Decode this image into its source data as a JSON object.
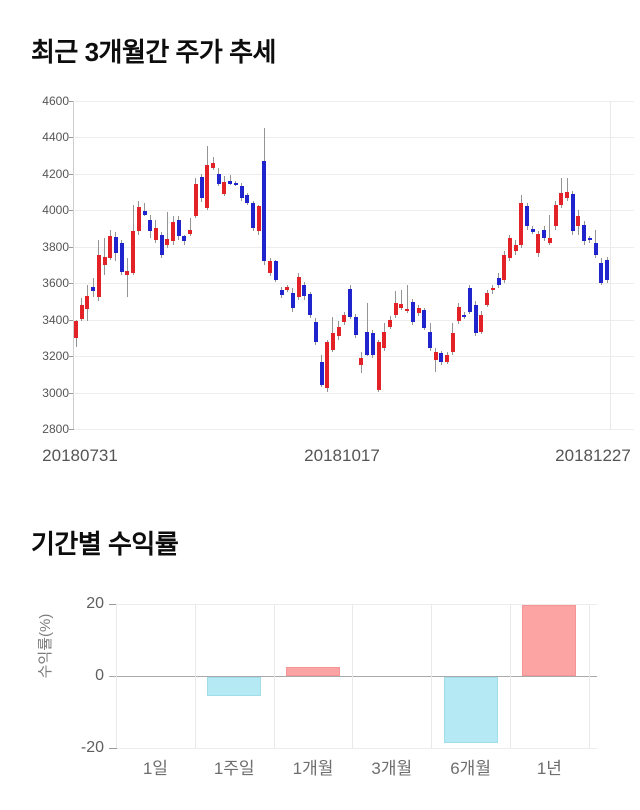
{
  "page_background": "#ffffff",
  "colors": {
    "candle_up": "#e32227",
    "candle_down": "#1f24cd",
    "wick": "#949494",
    "bar_positive_fill": "#fca4a4",
    "bar_positive_border": "#f59495",
    "bar_negative_fill": "#b5e9f3",
    "bar_negative_border": "#a0dcea",
    "gridline": "#ededed",
    "zero_line": "#a9a9a9",
    "title_text": "#0d0d0d",
    "tick_text": "#555555"
  },
  "chart_data": [
    {
      "type": "candlestick",
      "title": "최근 3개월간 주가 추세",
      "ylim": [
        2800,
        4600
      ],
      "y_ticks": [
        4600,
        4400,
        4200,
        4000,
        3800,
        3600,
        3400,
        3200,
        3000,
        2800
      ],
      "x_labels": [
        "20180731",
        "20181017",
        "20181227"
      ],
      "grid": "horizontal",
      "candles_format": [
        "open",
        "high",
        "low",
        "close"
      ],
      "up_color_meaning": "close >= open (red)",
      "down_color_meaning": "close < open (blue)",
      "candles": [
        [
          3300,
          3395,
          3250,
          3390
        ],
        [
          3400,
          3520,
          3390,
          3480
        ],
        [
          3460,
          3590,
          3390,
          3530
        ],
        [
          3580,
          3625,
          3525,
          3555
        ],
        [
          3525,
          3835,
          3500,
          3755
        ],
        [
          3700,
          3845,
          3645,
          3745
        ],
        [
          3735,
          3890,
          3725,
          3855
        ],
        [
          3850,
          3880,
          3720,
          3765
        ],
        [
          3820,
          3835,
          3645,
          3660
        ],
        [
          3645,
          3735,
          3525,
          3665
        ],
        [
          3655,
          4030,
          3645,
          3885
        ],
        [
          3885,
          4050,
          3865,
          4015
        ],
        [
          3995,
          4040,
          3965,
          3975
        ],
        [
          3945,
          3975,
          3845,
          3885
        ],
        [
          3835,
          3945,
          3820,
          3900
        ],
        [
          3865,
          3880,
          3735,
          3755
        ],
        [
          3810,
          3990,
          3790,
          3840
        ],
        [
          3830,
          3965,
          3810,
          3935
        ],
        [
          3945,
          3965,
          3835,
          3855
        ],
        [
          3855,
          3865,
          3810,
          3830
        ],
        [
          3870,
          3955,
          3855,
          3890
        ],
        [
          3965,
          4175,
          3955,
          4140
        ],
        [
          4180,
          4200,
          4045,
          4065
        ],
        [
          4010,
          4350,
          4000,
          4245
        ],
        [
          4230,
          4290,
          4220,
          4255
        ],
        [
          4200,
          4230,
          4130,
          4140
        ],
        [
          4085,
          4185,
          4075,
          4155
        ],
        [
          4160,
          4190,
          4135,
          4145
        ],
        [
          4150,
          4160,
          4130,
          4140
        ],
        [
          4130,
          4148,
          4047,
          4065
        ],
        [
          4080,
          4093,
          4029,
          4040
        ],
        [
          4040,
          4047,
          3883,
          3900
        ],
        [
          3883,
          4029,
          3864,
          4020
        ],
        [
          4270,
          4450,
          3700,
          3720
        ],
        [
          3655,
          3736,
          3636,
          3720
        ],
        [
          3718,
          3727,
          3608,
          3617
        ],
        [
          3562,
          3580,
          3517,
          3535
        ],
        [
          3562,
          3590,
          3550,
          3580
        ],
        [
          3544,
          3571,
          3443,
          3462
        ],
        [
          3526,
          3654,
          3508,
          3635
        ],
        [
          3590,
          3608,
          3508,
          3526
        ],
        [
          3539,
          3553,
          3407,
          3425
        ],
        [
          3389,
          3407,
          3260,
          3279
        ],
        [
          3169,
          3206,
          3032,
          3041
        ],
        [
          3023,
          3288,
          3005,
          3279
        ],
        [
          3233,
          3416,
          3224,
          3325
        ],
        [
          3310,
          3390,
          3290,
          3360
        ],
        [
          3389,
          3440,
          3370,
          3425
        ],
        [
          3568,
          3590,
          3400,
          3411
        ],
        [
          3411,
          3430,
          3300,
          3315
        ],
        [
          3151,
          3224,
          3105,
          3188
        ],
        [
          3334,
          3490,
          3200,
          3206
        ],
        [
          3325,
          3340,
          3190,
          3206
        ],
        [
          3014,
          3290,
          3005,
          3279
        ],
        [
          3242,
          3380,
          3230,
          3334
        ],
        [
          3361,
          3420,
          3350,
          3398
        ],
        [
          3425,
          3558,
          3407,
          3490
        ],
        [
          3462,
          3560,
          3450,
          3484
        ],
        [
          3445,
          3590,
          3435,
          3455
        ],
        [
          3498,
          3510,
          3370,
          3389
        ],
        [
          3434,
          3480,
          3420,
          3462
        ],
        [
          3453,
          3465,
          3340,
          3352
        ],
        [
          3334,
          3380,
          3230,
          3242
        ],
        [
          3178,
          3242,
          3114,
          3224
        ],
        [
          3215,
          3230,
          3150,
          3169
        ],
        [
          3169,
          3220,
          3155,
          3206
        ],
        [
          3224,
          3380,
          3206,
          3325
        ],
        [
          3389,
          3490,
          3375,
          3471
        ],
        [
          3425,
          3440,
          3400,
          3411
        ],
        [
          3571,
          3590,
          3430,
          3443
        ],
        [
          3480,
          3500,
          3310,
          3325
        ],
        [
          3334,
          3445,
          3320,
          3425
        ],
        [
          3480,
          3560,
          3470,
          3544
        ],
        [
          3560,
          3590,
          3540,
          3575
        ],
        [
          3625,
          3653,
          3571,
          3590
        ],
        [
          3617,
          3773,
          3599,
          3755
        ],
        [
          3736,
          3864,
          3718,
          3846
        ],
        [
          3773,
          3837,
          3755,
          3810
        ],
        [
          3810,
          4084,
          3791,
          4038
        ],
        [
          4020,
          4038,
          3892,
          3910
        ],
        [
          3896,
          3910,
          3870,
          3880
        ],
        [
          3764,
          3883,
          3745,
          3870
        ],
        [
          3892,
          3910,
          3828,
          3846
        ],
        [
          3819,
          3974,
          3810,
          3846
        ],
        [
          3910,
          4047,
          3892,
          4029
        ],
        [
          4029,
          4175,
          4011,
          4093
        ],
        [
          4065,
          4175,
          4047,
          4098
        ],
        [
          4087,
          4102,
          3864,
          3883
        ],
        [
          3910,
          4002,
          3864,
          3965
        ],
        [
          3919,
          3937,
          3810,
          3828
        ],
        [
          3845,
          3855,
          3820,
          3835
        ],
        [
          3819,
          3892,
          3736,
          3755
        ],
        [
          3709,
          3736,
          3590,
          3599
        ],
        [
          3727,
          3745,
          3599,
          3617
        ]
      ]
    },
    {
      "type": "bar",
      "title": "기간별 수익률",
      "ylabel": "수익률(%)",
      "ylim": [
        -20,
        20
      ],
      "y_ticks": [
        20,
        0,
        -20
      ],
      "categories": [
        "1일",
        "1주일",
        "1개월",
        "3개월",
        "6개월",
        "1년"
      ],
      "values": [
        0,
        -5.3,
        2.5,
        0,
        -18.4,
        19.8
      ],
      "grid": "vertical-separators-and-horizontal-ticks",
      "legend": "none"
    }
  ]
}
